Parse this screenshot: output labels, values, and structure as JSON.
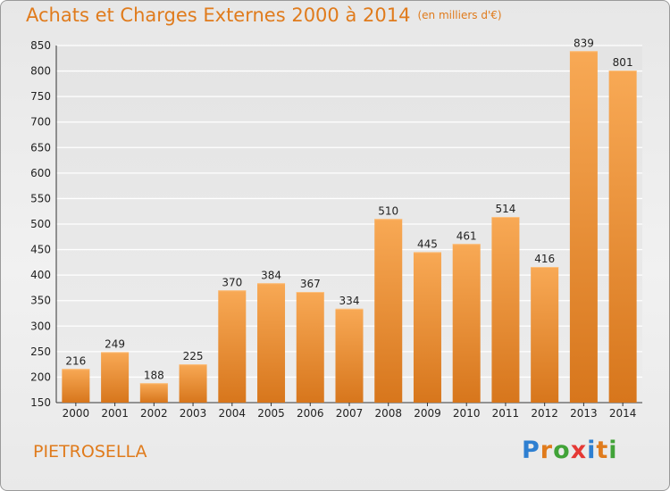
{
  "header": {
    "title": "Achats et Charges Externes 2000 à 2014",
    "unit": "(en milliers d'€)"
  },
  "footer": {
    "place": "PIETROSELLA",
    "logo": [
      "P",
      "r",
      "o",
      "x",
      "i",
      "t",
      "i"
    ],
    "logo_colors": [
      "#2e7fd1",
      "#e07b1c",
      "#41a338",
      "#e53935",
      "#2e7fd1",
      "#e07b1c",
      "#41a338"
    ]
  },
  "colors": {
    "accent": "#e07b1c",
    "bar_light": "#f8a955",
    "bar_dark": "#d7761c",
    "grid": "#ffffff"
  },
  "chart_data": {
    "type": "bar",
    "categories": [
      "2000",
      "2001",
      "2002",
      "2003",
      "2004",
      "2005",
      "2006",
      "2007",
      "2008",
      "2009",
      "2010",
      "2011",
      "2012",
      "2013",
      "2014"
    ],
    "values": [
      216,
      249,
      188,
      225,
      370,
      384,
      367,
      334,
      510,
      445,
      461,
      514,
      416,
      839,
      801
    ],
    "title": "Achats et Charges Externes 2000 à 2014",
    "subtitle": "(en milliers d'€)",
    "ylim": [
      150,
      850
    ],
    "yticks": [
      150,
      200,
      250,
      300,
      350,
      400,
      450,
      500,
      550,
      600,
      650,
      700,
      750,
      800,
      850
    ],
    "grid": true,
    "legend": "none"
  }
}
